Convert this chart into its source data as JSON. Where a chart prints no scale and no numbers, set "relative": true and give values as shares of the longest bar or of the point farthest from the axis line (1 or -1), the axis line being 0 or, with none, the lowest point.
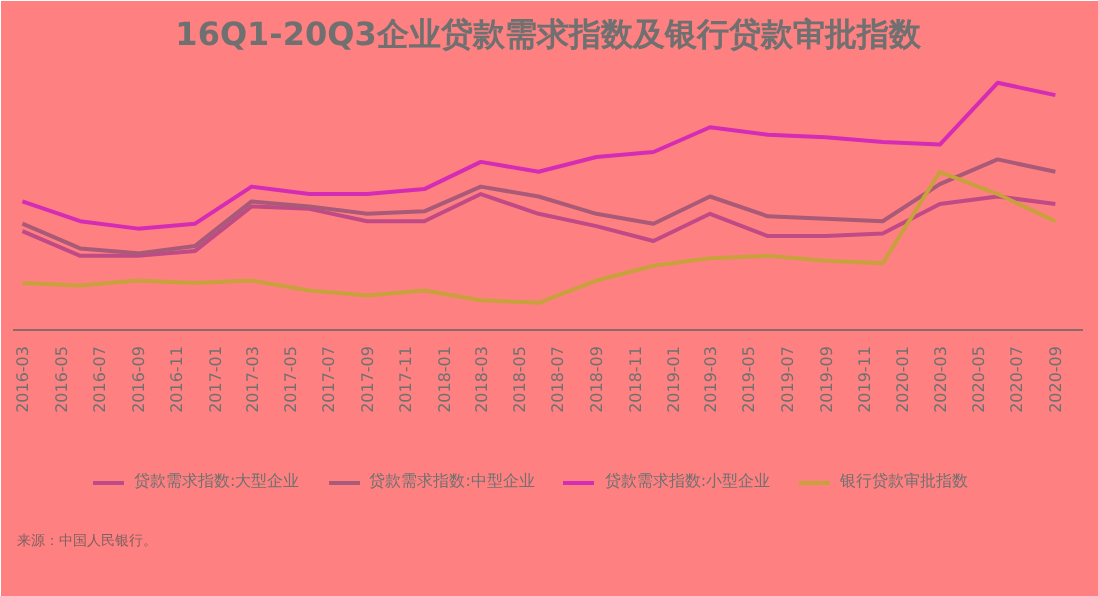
{
  "chart_data": {
    "type": "line",
    "title": "16Q1-20Q3企业贷款需求指数及银行贷款审批指数",
    "relative": true,
    "grid": false,
    "legend": "bottom",
    "x": [
      "2016-03",
      "2016-06",
      "2016-09",
      "2016-12",
      "2017-03",
      "2017-06",
      "2017-09",
      "2017-12",
      "2018-03",
      "2018-06",
      "2018-09",
      "2018-12",
      "2019-03",
      "2019-06",
      "2019-09",
      "2019-12",
      "2020-03",
      "2020-06",
      "2020-09"
    ],
    "xlim": [
      "2016-02-15",
      "2020-10-15"
    ],
    "xticks": [
      "2016-03",
      "2016-05",
      "2016-07",
      "2016-09",
      "2016-11",
      "2017-01",
      "2017-03",
      "2017-05",
      "2017-07",
      "2017-09",
      "2017-11",
      "2018-01",
      "2018-03",
      "2018-05",
      "2018-07",
      "2018-09",
      "2018-11",
      "2019-01",
      "2019-03",
      "2019-05",
      "2019-07",
      "2019-09",
      "2019-11",
      "2020-01",
      "2020-03",
      "2020-05",
      "2020-07",
      "2020-09"
    ],
    "series": [
      {
        "name": "贷款需求指数:大型企业",
        "color": "#c04a86",
        "values": [
          0.4,
          0.3,
          0.3,
          0.32,
          0.5,
          0.49,
          0.44,
          0.44,
          0.55,
          0.47,
          0.42,
          0.36,
          0.47,
          0.38,
          0.38,
          0.39,
          0.51,
          0.54,
          0.51
        ]
      },
      {
        "name": "贷款需求指数:中型企业",
        "color": "#a85a78",
        "values": [
          0.43,
          0.33,
          0.31,
          0.34,
          0.52,
          0.5,
          0.47,
          0.48,
          0.58,
          0.54,
          0.47,
          0.43,
          0.54,
          0.46,
          0.45,
          0.44,
          0.59,
          0.69,
          0.64
        ]
      },
      {
        "name": "贷款需求指数:小型企业",
        "color": "#d42cb4",
        "values": [
          0.52,
          0.44,
          0.41,
          0.43,
          0.58,
          0.55,
          0.55,
          0.57,
          0.68,
          0.64,
          0.7,
          0.72,
          0.82,
          0.79,
          0.78,
          0.76,
          0.75,
          1.0,
          0.95
        ]
      },
      {
        "name": "银行贷款审批指数",
        "color": "#c8a03c",
        "values": [
          0.19,
          0.18,
          0.2,
          0.19,
          0.2,
          0.16,
          0.14,
          0.16,
          0.12,
          0.11,
          0.2,
          0.26,
          0.29,
          0.3,
          0.28,
          0.27,
          0.64,
          0.55,
          0.44
        ]
      }
    ],
    "annotations": [
      "来源：中国人民银行。"
    ]
  }
}
